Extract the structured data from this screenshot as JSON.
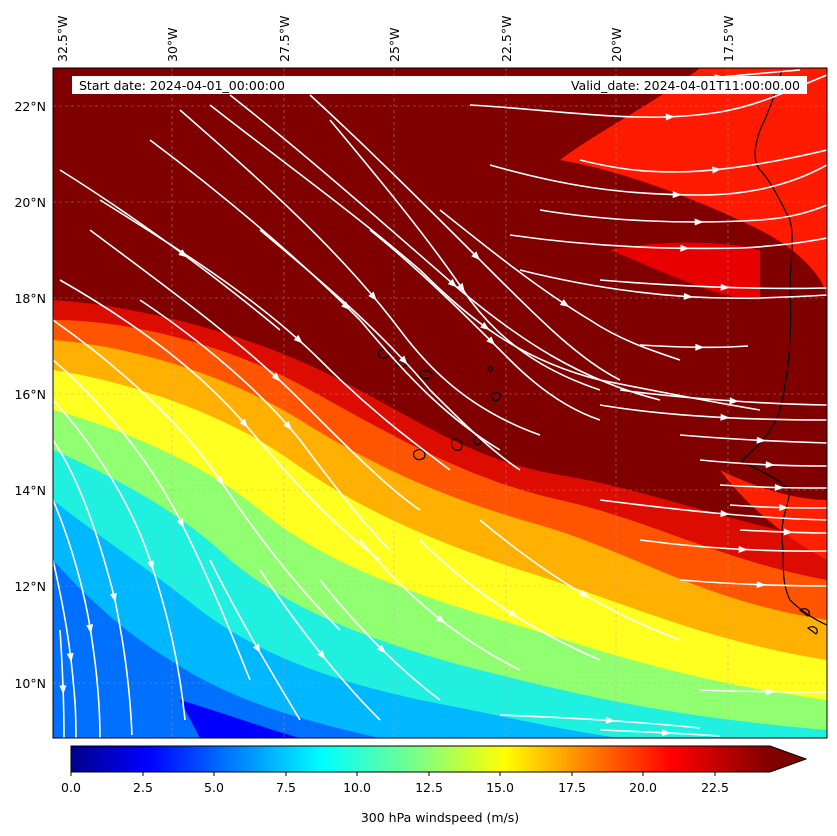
{
  "map": {
    "start_date": "Start date: 2024-04-01_00:00:00",
    "valid_date": "Valid_date: 2024-04-01T11:00:00.00",
    "field": "300 hPa windspeed",
    "lon_labels": [
      "32.5°W",
      "30°W",
      "27.5°W",
      "25°W",
      "22.5°W",
      "20°W",
      "17.5°W"
    ],
    "lat_labels": [
      "22°N",
      "20°N",
      "18°N",
      "16°N",
      "14°N",
      "12°N",
      "10°N"
    ],
    "extent": {
      "lon": [
        -32.5,
        -15.0
      ],
      "lat": [
        8.9,
        22.8
      ]
    },
    "overlays": [
      "wind streamlines (white)",
      "coastlines (black)",
      "dashed graticule"
    ]
  },
  "colorbar": {
    "title": "300 hPa windspeed (m/s)",
    "ticks": [
      "0.0",
      "2.5",
      "5.0",
      "7.5",
      "10.0",
      "12.5",
      "15.0",
      "17.5",
      "20.0",
      "22.5"
    ],
    "range": [
      0,
      25
    ],
    "extend": "max",
    "colormap": "jet",
    "colors": [
      "#000080",
      "#0000ff",
      "#0080ff",
      "#00ffff",
      "#80ff80",
      "#ffff00",
      "#ff8000",
      "#ff0000",
      "#800000"
    ]
  },
  "chart_data": {
    "type": "heatmap",
    "title": "",
    "xlabel": "",
    "ylabel": "",
    "colorbar_label": "300 hPa windspeed (m/s)",
    "xlim": [
      -32.5,
      -15.0
    ],
    "ylim": [
      8.9,
      22.8
    ],
    "clim": [
      0,
      25
    ],
    "x_ticks": [
      -32.5,
      -30.0,
      -27.5,
      -25.0,
      -22.5,
      -20.0,
      -17.5
    ],
    "y_ticks": [
      10,
      12,
      14,
      16,
      18,
      20,
      22
    ],
    "regions": [
      {
        "area": "northern band (jet core)",
        "windspeed": 25
      },
      {
        "area": "northeast corner",
        "windspeed": 21
      },
      {
        "area": "central diagonal",
        "windspeed": 20
      },
      {
        "area": "middle diagonal",
        "windspeed": 15
      },
      {
        "area": "southwest",
        "windspeed": 9
      },
      {
        "area": "far southwest",
        "windspeed": 5
      }
    ]
  }
}
